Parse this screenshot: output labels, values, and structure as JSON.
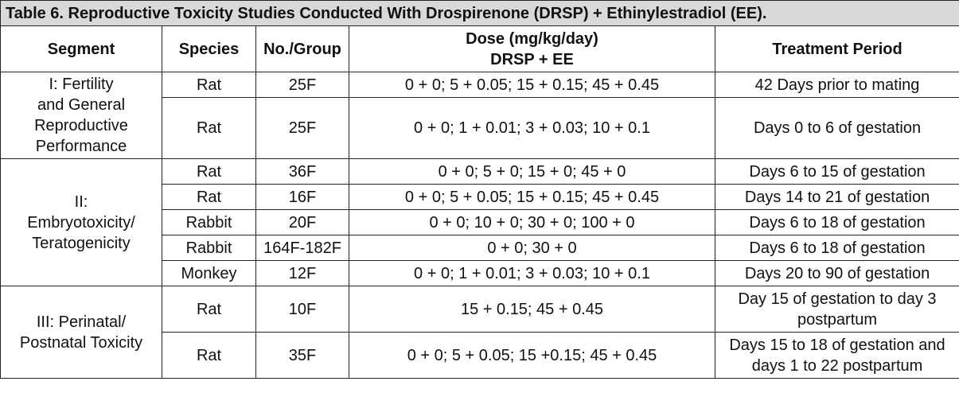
{
  "caption": "Table 6. Reproductive Toxicity Studies Conducted With Drospirenone (DRSP) + Ethinylestradiol (EE).",
  "headers": {
    "segment": "Segment",
    "species": "Species",
    "no_group": "No./Group",
    "dose_line1": "Dose (mg/kg/day)",
    "dose_line2": "DRSP + EE",
    "treatment": "Treatment Period"
  },
  "segments": [
    {
      "label_lines": [
        "I: Fertility",
        "and General",
        "Reproductive",
        "Performance"
      ]
    },
    {
      "label_lines": [
        "II:",
        "Embryotoxicity/",
        "Teratogenicity"
      ]
    },
    {
      "label_lines": [
        "III: Perinatal/",
        "Postnatal Toxicity"
      ]
    }
  ],
  "rows": [
    {
      "species": "Rat",
      "group": "25F",
      "dose": "0 + 0; 5 + 0.05; 15 + 0.15; 45 + 0.45",
      "period": "42 Days prior to mating"
    },
    {
      "species": "Rat",
      "group": "25F",
      "dose": "0 + 0; 1 + 0.01; 3 + 0.03; 10 + 0.1",
      "period": "Days 0 to 6 of gestation"
    },
    {
      "species": "Rat",
      "group": "36F",
      "dose": "0 + 0; 5 + 0; 15 + 0; 45 + 0",
      "period": "Days 6 to 15 of gestation"
    },
    {
      "species": "Rat",
      "group": "16F",
      "dose": "0 + 0; 5 + 0.05; 15 + 0.15; 45 + 0.45",
      "period": "Days 14 to 21 of gestation"
    },
    {
      "species": "Rabbit",
      "group": "20F",
      "dose": "0 + 0; 10 + 0; 30 + 0; 100 + 0",
      "period": "Days 6 to 18 of gestation"
    },
    {
      "species": "Rabbit",
      "group": "164F-182F",
      "dose": "0 + 0; 30 + 0",
      "period": "Days 6 to 18 of gestation"
    },
    {
      "species": "Monkey",
      "group": "12F",
      "dose": "0 + 0; 1 + 0.01; 3 + 0.03; 10 + 0.1",
      "period": "Days 20 to 90 of gestation"
    },
    {
      "species": "Rat",
      "group": "10F",
      "dose": "15 + 0.15; 45 + 0.45",
      "period_lines": [
        "Day 15 of gestation to day 3",
        "postpartum"
      ]
    },
    {
      "species": "Rat",
      "group": "35F",
      "dose": "0 + 0; 5 + 0.05; 15 +0.15; 45 + 0.45",
      "period_lines": [
        "Days 15 to 18 of gestation and",
        "days 1 to 22 postpartum"
      ]
    }
  ]
}
